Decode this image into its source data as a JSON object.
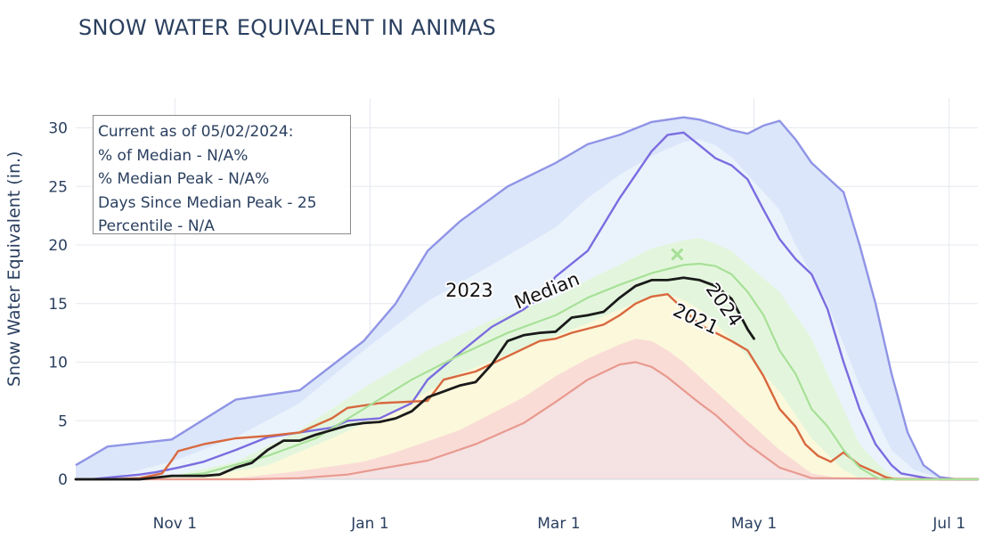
{
  "chart_data": {
    "type": "line",
    "title": "SNOW WATER EQUIVALENT IN ANIMAS",
    "xlabel": "",
    "ylabel": "Snow Water Equivalent (in.)",
    "ylim": [
      0,
      32
    ],
    "xlim_days_label": [
      "Oct 1",
      "Jul 7"
    ],
    "x_ticks": [
      {
        "label": "Nov 1",
        "day": 31
      },
      {
        "label": "Jan 1",
        "day": 92
      },
      {
        "label": "Mar 1",
        "day": 151
      },
      {
        "label": "May 1",
        "day": 212
      },
      {
        "label": "Jul 1",
        "day": 273
      }
    ],
    "y_ticks": [
      0,
      5,
      10,
      15,
      20,
      25,
      30
    ],
    "grid": true,
    "info_box": {
      "lines": [
        "Current as of 05/02/2024:",
        "% of Median - N/A%",
        "% Median Peak - N/A%",
        "Days Since Median Peak - 25",
        "Percentile - N/A"
      ]
    },
    "bands": [
      {
        "name": "max",
        "color": "#dbe6fa",
        "x": [
          0,
          10,
          30,
          50,
          70,
          90,
          100,
          110,
          120,
          135,
          150,
          160,
          170,
          180,
          190,
          195,
          200,
          205,
          210,
          215,
          220,
          225,
          230,
          240,
          245,
          250,
          255,
          260,
          265,
          270,
          275,
          282
        ],
        "y": [
          1.2,
          2.8,
          3.4,
          6.8,
          7.6,
          11.8,
          15.0,
          19.5,
          22.0,
          25.0,
          27.0,
          28.6,
          29.4,
          30.5,
          30.9,
          30.7,
          30.3,
          29.8,
          29.5,
          30.2,
          30.6,
          29.0,
          27.0,
          24.5,
          20.0,
          15.0,
          9.0,
          4.0,
          1.2,
          0.2,
          0.0,
          0.0
        ]
      },
      {
        "name": "p90",
        "color": "#eaf3fb",
        "x": [
          0,
          10,
          20,
          30,
          50,
          70,
          90,
          110,
          130,
          150,
          160,
          170,
          180,
          190,
          195,
          200,
          205,
          210,
          215,
          220,
          225,
          235,
          245,
          255,
          262,
          270,
          282
        ],
        "y": [
          0.0,
          0.0,
          0.8,
          1.5,
          3.6,
          6.5,
          11.0,
          15.2,
          18.3,
          21.5,
          24.0,
          26.0,
          27.6,
          28.8,
          29.0,
          28.5,
          27.5,
          26.0,
          24.5,
          23.0,
          20.0,
          15.0,
          8.0,
          2.5,
          0.8,
          0.1,
          0.0
        ]
      },
      {
        "name": "p70",
        "color": "#e3f6dd",
        "x": [
          0,
          30,
          50,
          70,
          90,
          110,
          130,
          150,
          160,
          170,
          180,
          190,
          195,
          200,
          205,
          210,
          220,
          230,
          240,
          245,
          250,
          255,
          260,
          265,
          282
        ],
        "y": [
          0.0,
          0.3,
          1.5,
          4.2,
          7.8,
          11.0,
          13.6,
          15.5,
          17.0,
          18.3,
          19.7,
          20.4,
          20.6,
          20.1,
          19.5,
          18.3,
          16.0,
          12.0,
          6.0,
          3.0,
          1.5,
          0.3,
          0.0,
          0.0,
          0.0
        ]
      },
      {
        "name": "p50",
        "color": "#fbf8db",
        "x": [
          0,
          40,
          60,
          80,
          100,
          120,
          140,
          160,
          170,
          180,
          185,
          190,
          195,
          200,
          210,
          220,
          230,
          240,
          245,
          250,
          282
        ],
        "y": [
          0.0,
          0.2,
          1.2,
          3.5,
          6.0,
          9.0,
          11.2,
          13.3,
          14.5,
          15.6,
          15.8,
          15.3,
          14.5,
          13.3,
          10.5,
          7.5,
          3.5,
          0.8,
          0.1,
          0.0,
          0.0
        ]
      },
      {
        "name": "p30",
        "color": "#fadcd6",
        "x": [
          0,
          50,
          70,
          90,
          100,
          120,
          140,
          150,
          160,
          170,
          175,
          180,
          185,
          190,
          200,
          210,
          220,
          230,
          240,
          250,
          282
        ],
        "y": [
          0.0,
          0.1,
          0.7,
          1.5,
          2.3,
          4.2,
          7.0,
          8.8,
          10.3,
          11.5,
          12.0,
          11.8,
          11.0,
          10.0,
          7.5,
          5.0,
          2.5,
          0.5,
          0.0,
          0.0,
          0.0
        ]
      },
      {
        "name": "p10",
        "color": "#f5e2e2",
        "x": [
          0,
          55,
          70,
          85,
          95,
          110,
          125,
          140,
          150,
          160,
          170,
          175,
          180,
          185,
          190,
          195,
          200,
          210,
          220,
          230,
          282
        ],
        "y": [
          0.0,
          0.0,
          0.1,
          0.4,
          0.9,
          1.6,
          3.0,
          4.8,
          6.6,
          8.5,
          9.8,
          10.0,
          9.6,
          8.7,
          7.6,
          6.5,
          5.5,
          3.0,
          1.0,
          0.1,
          0.0
        ]
      }
    ],
    "series": [
      {
        "name": "2023",
        "color": "#7b6ce0",
        "width": 2.4,
        "x": [
          0,
          5,
          12,
          20,
          25,
          32,
          40,
          50,
          60,
          70,
          80,
          85,
          95,
          105,
          110,
          120,
          130,
          140,
          145,
          150,
          160,
          170,
          180,
          185,
          190,
          195,
          200,
          205,
          210,
          215,
          220,
          225,
          230,
          235,
          240,
          245,
          250,
          255,
          258,
          262,
          266,
          270,
          275,
          282
        ],
        "y": [
          0.0,
          0.0,
          0.2,
          0.4,
          0.6,
          1.0,
          1.5,
          2.5,
          3.6,
          4.0,
          4.4,
          5.0,
          5.2,
          6.5,
          8.5,
          10.8,
          13.0,
          14.5,
          15.5,
          17.3,
          19.5,
          24.0,
          28.0,
          29.4,
          29.6,
          28.5,
          27.4,
          26.8,
          25.6,
          23.0,
          20.5,
          18.8,
          17.5,
          14.5,
          10.0,
          6.0,
          3.0,
          1.2,
          0.5,
          0.3,
          0.1,
          0.0,
          0.0,
          0.0
        ]
      },
      {
        "name": "2021",
        "color": "#d8683e",
        "width": 2.4,
        "x": [
          0,
          10,
          20,
          27,
          30,
          32,
          40,
          50,
          60,
          70,
          80,
          85,
          95,
          110,
          115,
          125,
          135,
          145,
          150,
          155,
          165,
          170,
          175,
          180,
          185,
          190,
          195,
          200,
          205,
          210,
          215,
          220,
          225,
          228,
          232,
          236,
          240,
          245,
          250,
          253,
          256,
          258,
          262,
          270,
          282
        ],
        "y": [
          0.0,
          0.0,
          0.1,
          0.5,
          1.6,
          2.4,
          3.0,
          3.5,
          3.7,
          4.0,
          5.2,
          6.1,
          6.5,
          6.7,
          8.5,
          9.2,
          10.5,
          11.8,
          12.0,
          12.5,
          13.2,
          14.0,
          15.0,
          15.6,
          15.8,
          14.5,
          13.2,
          12.5,
          11.8,
          11.0,
          8.8,
          6.0,
          4.5,
          3.0,
          2.0,
          1.5,
          2.3,
          1.2,
          0.6,
          0.2,
          0.0,
          0.0,
          0.0,
          0.0,
          0.0
        ]
      },
      {
        "name": "Median",
        "color": "#a8e098",
        "width": 2.2,
        "x": [
          0,
          20,
          40,
          60,
          75,
          90,
          105,
          120,
          135,
          150,
          160,
          170,
          180,
          190,
          195,
          200,
          205,
          210,
          215,
          220,
          225,
          230,
          235,
          240,
          245,
          250,
          252,
          256,
          262,
          270,
          282
        ],
        "y": [
          0.0,
          0.0,
          0.5,
          2.0,
          3.5,
          6.0,
          8.5,
          10.6,
          12.5,
          14.0,
          15.5,
          16.6,
          17.6,
          18.3,
          18.4,
          18.2,
          17.5,
          16.0,
          14.0,
          11.0,
          9.0,
          6.0,
          4.5,
          2.5,
          1.0,
          0.2,
          0.0,
          0.0,
          0.0,
          0.0,
          0.0
        ]
      },
      {
        "name": "2024",
        "color": "#1a1a1a",
        "width": 2.8,
        "x": [
          0,
          10,
          20,
          30,
          40,
          45,
          50,
          55,
          60,
          65,
          70,
          75,
          80,
          85,
          90,
          95,
          100,
          105,
          110,
          115,
          120,
          125,
          130,
          135,
          140,
          145,
          150,
          155,
          160,
          165,
          170,
          175,
          180,
          185,
          190,
          195,
          200,
          205,
          210,
          212
        ],
        "y": [
          0.0,
          0.0,
          0.0,
          0.3,
          0.3,
          0.4,
          1.0,
          1.4,
          2.5,
          3.3,
          3.3,
          3.8,
          4.2,
          4.6,
          4.8,
          4.9,
          5.2,
          5.8,
          7.0,
          7.5,
          8.0,
          8.3,
          9.8,
          11.8,
          12.3,
          12.5,
          12.6,
          13.8,
          14.0,
          14.3,
          15.5,
          16.5,
          17.0,
          17.0,
          17.2,
          17.0,
          16.5,
          15.4,
          12.8,
          12.0
        ]
      }
    ],
    "median_peak": {
      "x": 188,
      "y": 19.2,
      "color": "#a8e098"
    },
    "annotations": [
      {
        "text": "2023",
        "x": 123,
        "y": 15.6,
        "angle": 0
      },
      {
        "text": "Median",
        "x": 148,
        "y": 15.6,
        "angle": -22
      },
      {
        "text": "2024",
        "x": 201,
        "y": 14.6,
        "angle": 55
      },
      {
        "text": "2021",
        "x": 193,
        "y": 13.2,
        "angle": 25
      }
    ]
  }
}
